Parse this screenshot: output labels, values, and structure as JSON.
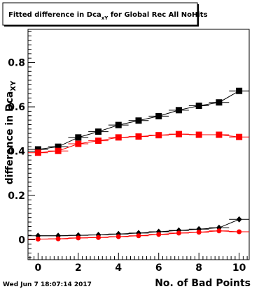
{
  "chart_data": {
    "type": "scatter",
    "title_main": "Fitted difference in Dca",
    "title_sub": "xY",
    "title_rest": " for Global Rec All NoHits",
    "ylabel_main": "difference in Dca",
    "ylabel_sub": "XY",
    "xlabel": "No. of Bad Points",
    "timestamp": "Wed Jun  7 18:07:14 2017",
    "xlim": [
      -0.5,
      10.5
    ],
    "ylim": [
      -0.09,
      0.95
    ],
    "x_ticks": [
      "0",
      "2",
      "4",
      "6",
      "8",
      "10"
    ],
    "y_ticks": [
      "0",
      "0.2",
      "0.4",
      "0.6",
      "0.8"
    ],
    "series": [
      {
        "marker": "square",
        "color": "#000000",
        "x": [
          0,
          1,
          2,
          3,
          4,
          5,
          6,
          7,
          8,
          9,
          10
        ],
        "y": [
          0.408,
          0.42,
          0.462,
          0.488,
          0.518,
          0.538,
          0.558,
          0.585,
          0.605,
          0.62,
          0.672
        ]
      },
      {
        "marker": "square",
        "color": "#ff0000",
        "x": [
          0,
          1,
          2,
          3,
          4,
          5,
          6,
          7,
          8,
          9,
          10
        ],
        "y": [
          0.393,
          0.401,
          0.433,
          0.447,
          0.462,
          0.466,
          0.472,
          0.477,
          0.474,
          0.474,
          0.464
        ]
      },
      {
        "marker": "diamond",
        "color": "#000000",
        "x": [
          0,
          1,
          2,
          3,
          4,
          5,
          6,
          7,
          8,
          9,
          10
        ],
        "y": [
          0.018,
          0.018,
          0.02,
          0.022,
          0.026,
          0.03,
          0.036,
          0.042,
          0.048,
          0.054,
          0.092
        ]
      },
      {
        "marker": "circle",
        "color": "#ff0000",
        "x": [
          0,
          1,
          2,
          3,
          4,
          5,
          6,
          7,
          8,
          9,
          10
        ],
        "y": [
          0.003,
          0.004,
          0.008,
          0.01,
          0.014,
          0.018,
          0.024,
          0.03,
          0.034,
          0.04,
          0.036
        ]
      }
    ]
  }
}
